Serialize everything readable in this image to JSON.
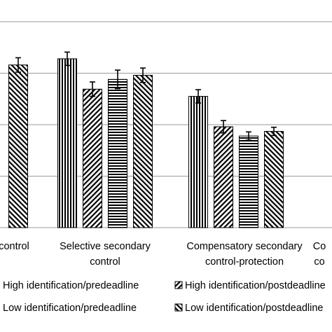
{
  "chart_data": {
    "type": "bar",
    "title": "",
    "xlabel": "",
    "ylabel": "",
    "grid": true,
    "ylim": [
      0,
      4
    ],
    "legend_position": "bottom",
    "categories": [
      {
        "lines": [
          "control"
        ]
      },
      {
        "lines": [
          "Selective secondary",
          "control"
        ]
      },
      {
        "lines": [
          "Compensatory secondary",
          "control-protection"
        ]
      },
      {
        "lines": [
          "Co",
          "co"
        ]
      }
    ],
    "series": [
      {
        "name": "High identification/predeadline",
        "pattern": "vertical",
        "values": [
          null,
          3.28,
          2.55,
          null
        ],
        "errors": [
          null,
          0.13,
          0.13,
          null
        ]
      },
      {
        "name": "High identification/postdeadline",
        "pattern": "diag-up",
        "values": [
          null,
          2.69,
          1.96,
          null
        ],
        "errors": [
          null,
          0.14,
          0.12,
          null
        ]
      },
      {
        "name": "Low identification/predeadline",
        "pattern": "horizontal",
        "values": [
          null,
          2.88,
          1.78,
          null
        ],
        "errors": [
          null,
          0.18,
          0.08,
          null
        ]
      },
      {
        "name": "Low identification/postdeadline",
        "pattern": "diag-down",
        "values": [
          3.16,
          2.96,
          1.87,
          null
        ],
        "errors": [
          0.14,
          0.14,
          0.08,
          null
        ]
      }
    ]
  }
}
